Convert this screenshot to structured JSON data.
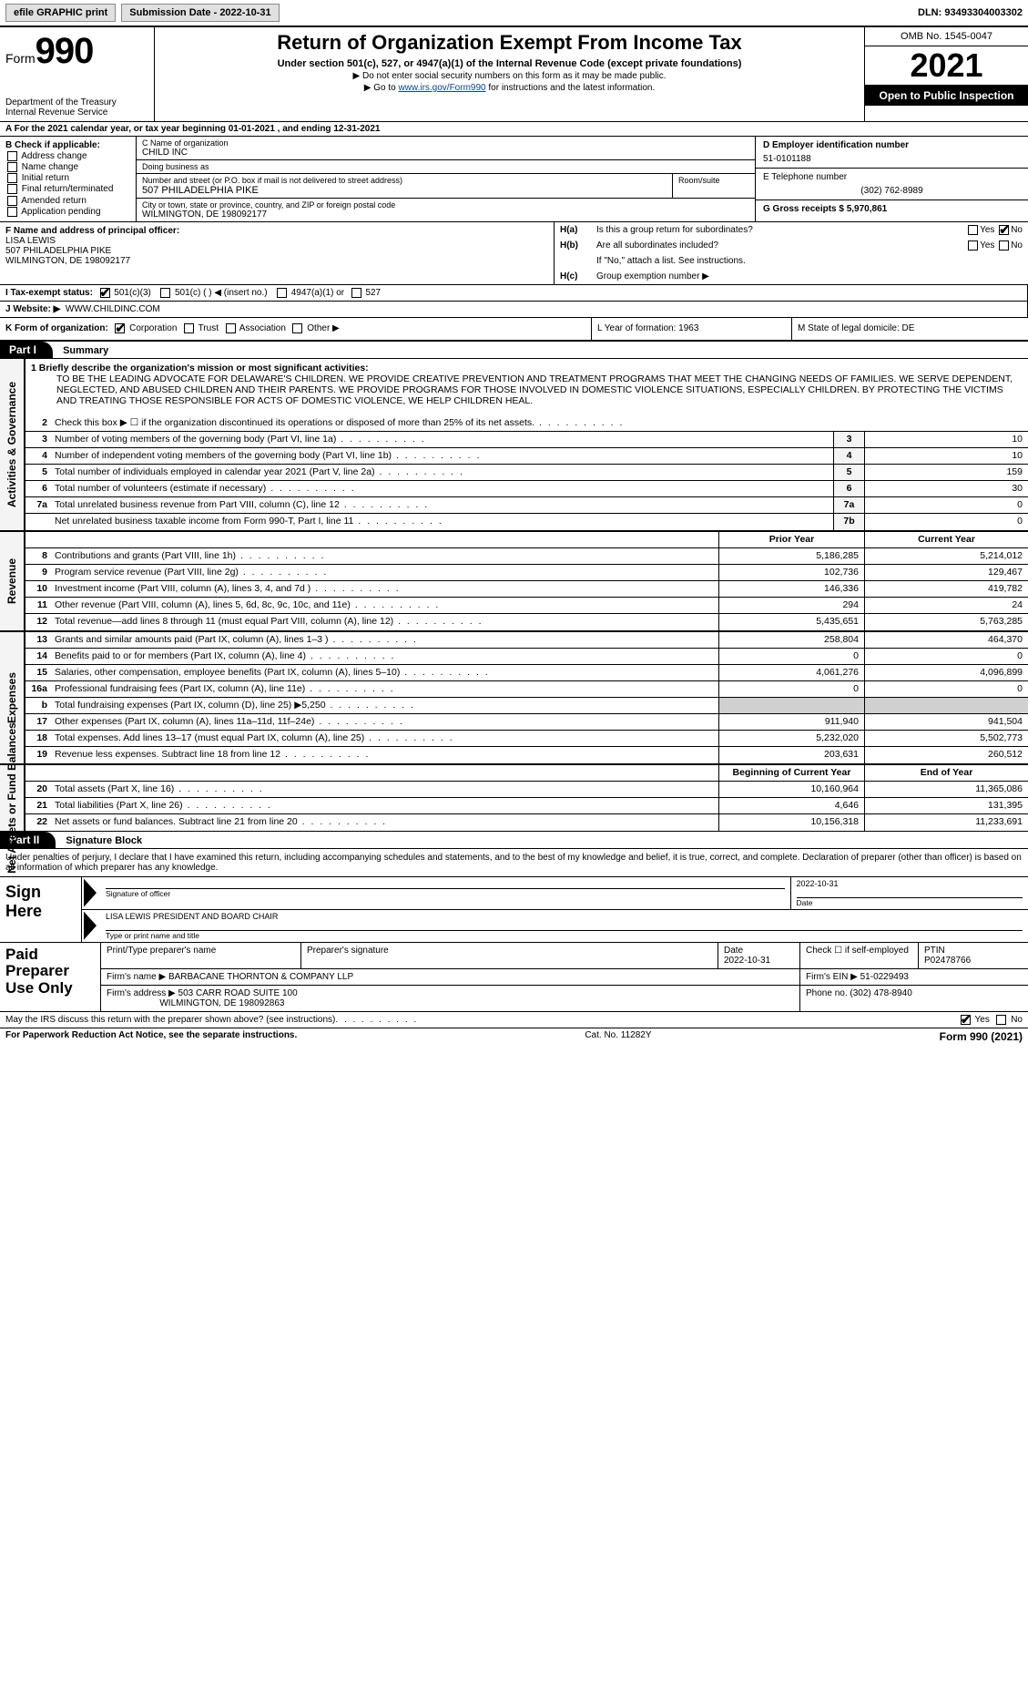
{
  "topbar": {
    "efile_label": "efile GRAPHIC print",
    "submission_label": "Submission Date - 2022-10-31",
    "dln_label": "DLN: 93493304003302"
  },
  "header": {
    "form_label": "Form",
    "form_num": "990",
    "dept": "Department of the Treasury",
    "irs": "Internal Revenue Service",
    "title": "Return of Organization Exempt From Income Tax",
    "subtitle": "Under section 501(c), 527, or 4947(a)(1) of the Internal Revenue Code (except private foundations)",
    "note1": "▶ Do not enter social security numbers on this form as it may be made public.",
    "note2_pre": "▶ Go to ",
    "note2_link": "www.irs.gov/Form990",
    "note2_post": " for instructions and the latest information.",
    "omb": "OMB No. 1545-0047",
    "year": "2021",
    "open_public": "Open to Public Inspection"
  },
  "row_a": "A For the 2021 calendar year, or tax year beginning 01-01-2021    , and ending 12-31-2021",
  "box_b": {
    "title": "B Check if applicable:",
    "opts": [
      "Address change",
      "Name change",
      "Initial return",
      "Final return/terminated",
      "Amended return",
      "Application pending"
    ]
  },
  "box_c": {
    "name_label": "C Name of organization",
    "name": "CHILD INC",
    "dba_label": "Doing business as",
    "dba": "",
    "street_label": "Number and street (or P.O. box if mail is not delivered to street address)",
    "room_label": "Room/suite",
    "street": "507 PHILADELPHIA PIKE",
    "city_label": "City or town, state or province, country, and ZIP or foreign postal code",
    "city": "WILMINGTON, DE  198092177"
  },
  "box_d": {
    "ein_label": "D Employer identification number",
    "ein": "51-0101188",
    "tel_label": "E Telephone number",
    "tel": "(302) 762-8989",
    "gross_label": "G Gross receipts $",
    "gross": "5,970,861"
  },
  "box_f": {
    "label": "F Name and address of principal officer:",
    "name": "LISA LEWIS",
    "addr1": "507 PHILADELPHIA PIKE",
    "addr2": "WILMINGTON, DE  198092177"
  },
  "box_h": {
    "ha_label": "H(a)",
    "ha_text": "Is this a group return for subordinates?",
    "hb_label": "H(b)",
    "hb_text": "Are all subordinates included?",
    "hb_note": "If \"No,\" attach a list. See instructions.",
    "hc_label": "H(c)",
    "hc_text": "Group exemption number ▶",
    "yes": "Yes",
    "no": "No"
  },
  "row_i": {
    "label": "I   Tax-exempt status:",
    "o1": "501(c)(3)",
    "o2": "501(c) (   ) ◀ (insert no.)",
    "o3": "4947(a)(1) or",
    "o4": "527"
  },
  "row_j": {
    "label": "J   Website: ▶",
    "val": "WWW.CHILDINC.COM"
  },
  "row_k": {
    "k_label": "K Form of organization:",
    "corp": "Corporation",
    "trust": "Trust",
    "assoc": "Association",
    "other": "Other ▶",
    "l_label": "L Year of formation: 1963",
    "m_label": "M State of legal domicile: DE"
  },
  "part1": {
    "num": "Part I",
    "title": "Summary"
  },
  "mission": {
    "lead": "1  Briefly describe the organization's mission or most significant activities:",
    "text": "TO BE THE LEADING ADVOCATE FOR DELAWARE'S CHILDREN. WE PROVIDE CREATIVE PREVENTION AND TREATMENT PROGRAMS THAT MEET THE CHANGING NEEDS OF FAMILIES. WE SERVE DEPENDENT, NEGLECTED, AND ABUSED CHILDREN AND THEIR PARENTS. WE PROVIDE PROGRAMS FOR THOSE INVOLVED IN DOMESTIC VIOLENCE SITUATIONS, ESPECIALLY CHILDREN. BY PROTECTING THE VICTIMS AND TREATING THOSE RESPONSIBLE FOR ACTS OF DOMESTIC VIOLENCE, WE HELP CHILDREN HEAL."
  },
  "gov_lines": [
    {
      "n": "2",
      "t": "Check this box ▶ ☐  if the organization discontinued its operations or disposed of more than 25% of its net assets.",
      "box": "",
      "v": ""
    },
    {
      "n": "3",
      "t": "Number of voting members of the governing body (Part VI, line 1a)",
      "box": "3",
      "v": "10"
    },
    {
      "n": "4",
      "t": "Number of independent voting members of the governing body (Part VI, line 1b)",
      "box": "4",
      "v": "10"
    },
    {
      "n": "5",
      "t": "Total number of individuals employed in calendar year 2021 (Part V, line 2a)",
      "box": "5",
      "v": "159"
    },
    {
      "n": "6",
      "t": "Total number of volunteers (estimate if necessary)",
      "box": "6",
      "v": "30"
    },
    {
      "n": "7a",
      "t": "Total unrelated business revenue from Part VIII, column (C), line 12",
      "box": "7a",
      "v": "0"
    },
    {
      "n": "",
      "t": "Net unrelated business taxable income from Form 990-T, Part I, line 11",
      "box": "7b",
      "v": "0"
    }
  ],
  "rev_hdr": {
    "prior": "Prior Year",
    "current": "Current Year"
  },
  "rev_lines": [
    {
      "n": "8",
      "t": "Contributions and grants (Part VIII, line 1h)",
      "p": "5,186,285",
      "c": "5,214,012"
    },
    {
      "n": "9",
      "t": "Program service revenue (Part VIII, line 2g)",
      "p": "102,736",
      "c": "129,467"
    },
    {
      "n": "10",
      "t": "Investment income (Part VIII, column (A), lines 3, 4, and 7d )",
      "p": "146,336",
      "c": "419,782"
    },
    {
      "n": "11",
      "t": "Other revenue (Part VIII, column (A), lines 5, 6d, 8c, 9c, 10c, and 11e)",
      "p": "294",
      "c": "24"
    },
    {
      "n": "12",
      "t": "Total revenue—add lines 8 through 11 (must equal Part VIII, column (A), line 12)",
      "p": "5,435,651",
      "c": "5,763,285"
    }
  ],
  "exp_lines": [
    {
      "n": "13",
      "t": "Grants and similar amounts paid (Part IX, column (A), lines 1–3 )",
      "p": "258,804",
      "c": "464,370"
    },
    {
      "n": "14",
      "t": "Benefits paid to or for members (Part IX, column (A), line 4)",
      "p": "0",
      "c": "0"
    },
    {
      "n": "15",
      "t": "Salaries, other compensation, employee benefits (Part IX, column (A), lines 5–10)",
      "p": "4,061,276",
      "c": "4,096,899"
    },
    {
      "n": "16a",
      "t": "Professional fundraising fees (Part IX, column (A), line 11e)",
      "p": "0",
      "c": "0"
    },
    {
      "n": "b",
      "t": "Total fundraising expenses (Part IX, column (D), line 25) ▶5,250",
      "p": "",
      "c": "",
      "shade": true
    },
    {
      "n": "17",
      "t": "Other expenses (Part IX, column (A), lines 11a–11d, 11f–24e)",
      "p": "911,940",
      "c": "941,504"
    },
    {
      "n": "18",
      "t": "Total expenses. Add lines 13–17 (must equal Part IX, column (A), line 25)",
      "p": "5,232,020",
      "c": "5,502,773"
    },
    {
      "n": "19",
      "t": "Revenue less expenses. Subtract line 18 from line 12",
      "p": "203,631",
      "c": "260,512"
    }
  ],
  "net_hdr": {
    "beg": "Beginning of Current Year",
    "end": "End of Year"
  },
  "net_lines": [
    {
      "n": "20",
      "t": "Total assets (Part X, line 16)",
      "p": "10,160,964",
      "c": "11,365,086"
    },
    {
      "n": "21",
      "t": "Total liabilities (Part X, line 26)",
      "p": "4,646",
      "c": "131,395"
    },
    {
      "n": "22",
      "t": "Net assets or fund balances. Subtract line 21 from line 20",
      "p": "10,156,318",
      "c": "11,233,691"
    }
  ],
  "side_labels": {
    "gov": "Activities & Governance",
    "rev": "Revenue",
    "exp": "Expenses",
    "net": "Net Assets or Fund Balances"
  },
  "part2": {
    "num": "Part II",
    "title": "Signature Block"
  },
  "sig_intro": "Under penalties of perjury, I declare that I have examined this return, including accompanying schedules and statements, and to the best of my knowledge and belief, it is true, correct, and complete. Declaration of preparer (other than officer) is based on all information of which preparer has any knowledge.",
  "sign_here": "Sign Here",
  "sig": {
    "sig_of_officer": "Signature of officer",
    "date": "Date",
    "date_val": "2022-10-31",
    "name_title": "LISA LEWIS PRESIDENT AND BOARD CHAIR",
    "type_name": "Type or print name and title"
  },
  "paid_prep": "Paid Preparer Use Only",
  "prep": {
    "h1": "Print/Type preparer's name",
    "h2": "Preparer's signature",
    "h3": "Date",
    "h3v": "2022-10-31",
    "h4": "Check ☐ if self-employed",
    "h5": "PTIN",
    "h5v": "P02478766",
    "firm_name_l": "Firm's name     ▶",
    "firm_name": "BARBACANE THORNTON & COMPANY LLP",
    "firm_ein_l": "Firm's EIN ▶",
    "firm_ein": "51-0229493",
    "firm_addr_l": "Firm's address ▶",
    "firm_addr1": "503 CARR ROAD SUITE 100",
    "firm_addr2": "WILMINGTON, DE  198092863",
    "phone_l": "Phone no.",
    "phone": "(302) 478-8940"
  },
  "discuss": {
    "text": "May the IRS discuss this return with the preparer shown above? (see instructions)",
    "yes": "Yes",
    "no": "No"
  },
  "footer": {
    "left": "For Paperwork Reduction Act Notice, see the separate instructions.",
    "mid": "Cat. No. 11282Y",
    "right": "Form 990 (2021)"
  }
}
